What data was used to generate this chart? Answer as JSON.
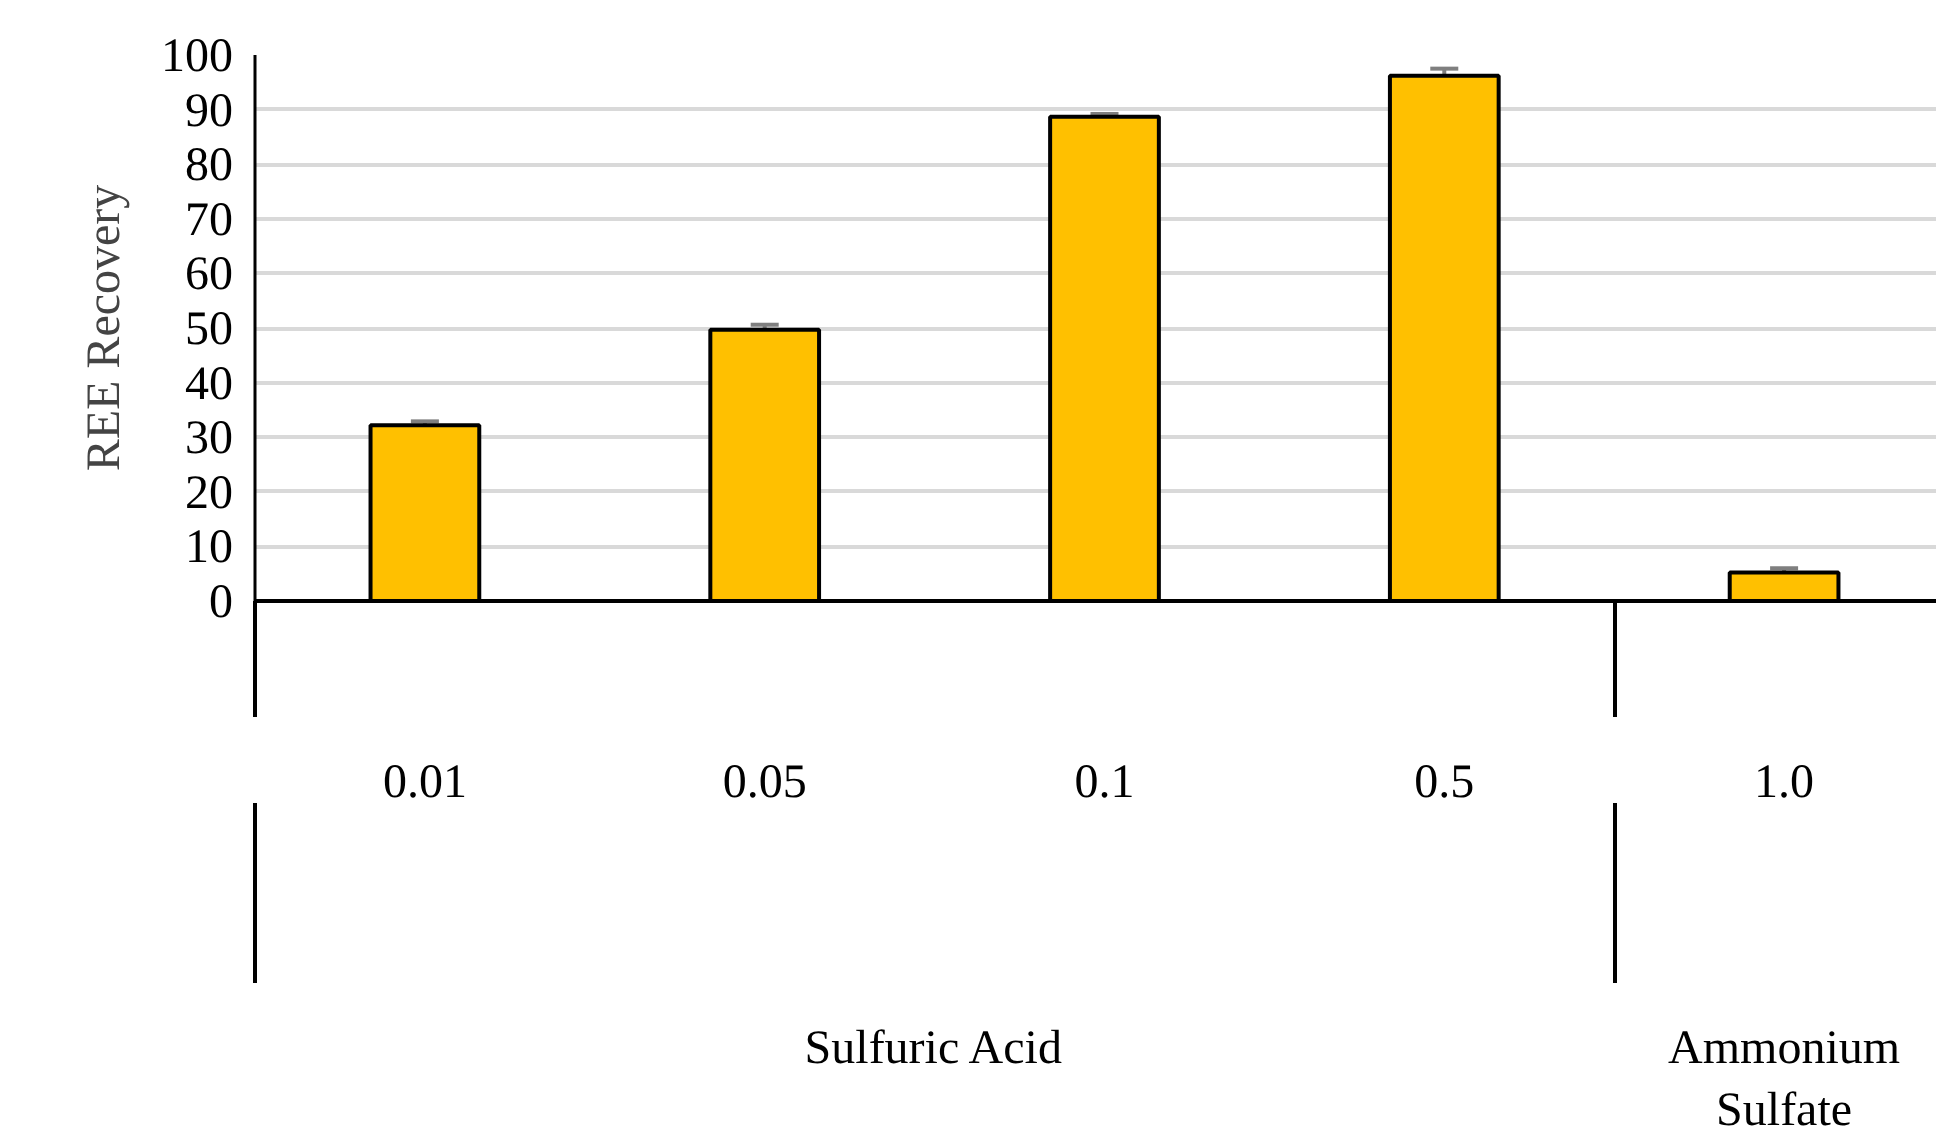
{
  "chart_data": {
    "type": "bar",
    "ylabel": "REE Recovery",
    "categories": [
      "0.01",
      "0.05",
      "0.1",
      "0.5",
      "1.0"
    ],
    "values": [
      32.2,
      49.7,
      88.7,
      96.2,
      5.2
    ],
    "errors": [
      0.7,
      0.9,
      0.5,
      1.3,
      0.8
    ],
    "color": "#ffc000",
    "ylim": [
      0,
      100
    ],
    "yticks": [
      0,
      10,
      20,
      30,
      40,
      50,
      60,
      70,
      80,
      90,
      100
    ],
    "grid": "y",
    "annotations": [
      "Sulfuric Acid",
      "Ammonium Sulfate"
    ]
  }
}
